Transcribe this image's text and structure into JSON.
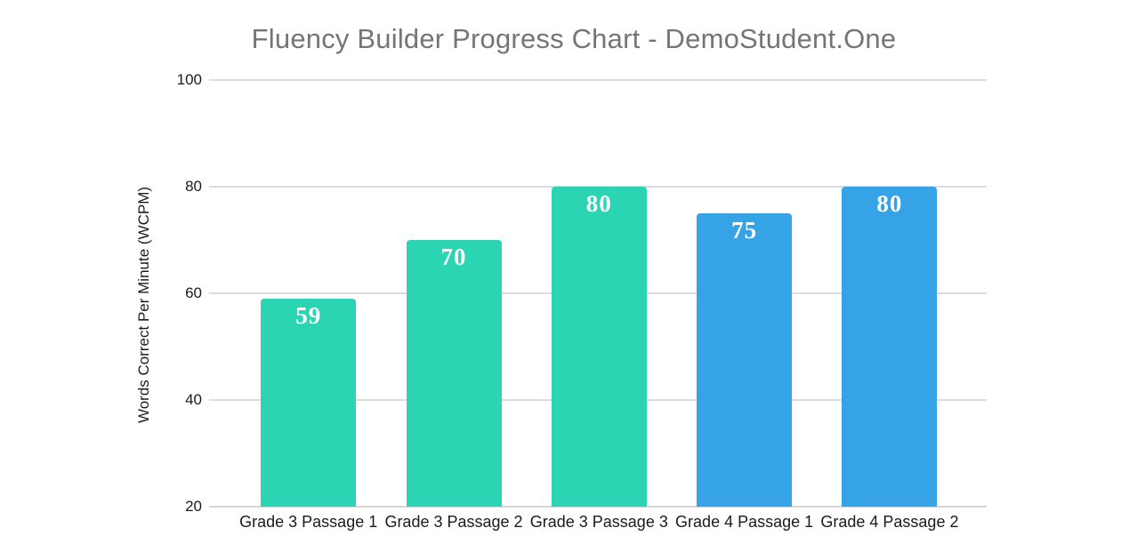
{
  "page": {
    "background": "#ffffff"
  },
  "chart_data": {
    "type": "bar",
    "title": "Fluency Builder Progress Chart - DemoStudent.One",
    "title_color": "#757575",
    "categories": [
      "Grade 3 Passage 1",
      "Grade 3 Passage 2",
      "Grade 3 Passage 3",
      "Grade 4 Passage 1",
      "Grade 4 Passage 2"
    ],
    "values": [
      59,
      70,
      80,
      75,
      80
    ],
    "bar_colors": [
      "#2bd5b4",
      "#2bd5b4",
      "#2bd5b4",
      "#35a3e5",
      "#35a3e5"
    ],
    "value_label_color": "#ffffff",
    "xlabel": "",
    "ylabel": "Words Correct Per Minute (WCPM)",
    "ylim": [
      20,
      100
    ],
    "yticks": [
      100,
      80,
      60,
      40,
      20
    ],
    "grid": "horizontal",
    "gridline_color": "#dcdcdc",
    "axis_text_color": "#1b1b1b",
    "legend": "none"
  }
}
